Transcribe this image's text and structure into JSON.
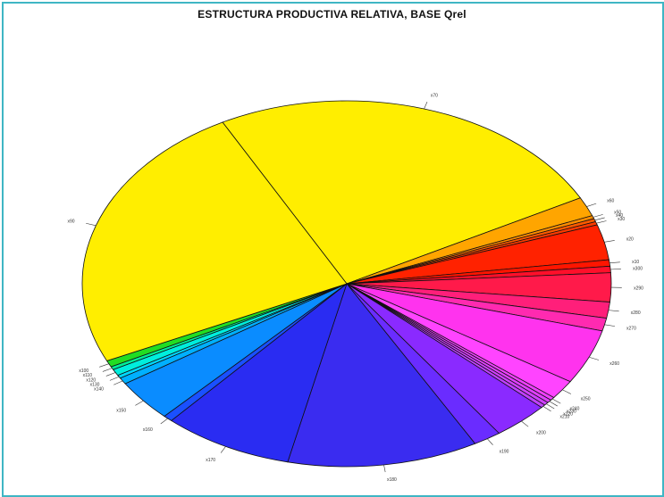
{
  "chart_data": {
    "type": "pie",
    "title": "ESTRUCTURA PRODUCTIVA RELATIVA, BASE Qrel",
    "unit": "degrees",
    "slices": [
      {
        "label": "x70",
        "value": 88,
        "color": "#ffee00"
      },
      {
        "label": "x60",
        "value": 6,
        "color": "#ffa500"
      },
      {
        "label": "x50",
        "value": 1,
        "color": "#ff8c00"
      },
      {
        "label": "x40",
        "value": 1,
        "color": "#ff5a00"
      },
      {
        "label": "x30",
        "value": 1,
        "color": "#ff3a00"
      },
      {
        "label": "x20",
        "value": 11,
        "color": "#ff2200"
      },
      {
        "label": "x10",
        "value": 2,
        "color": "#ff1500"
      },
      {
        "label": "x300",
        "value": 2,
        "color": "#ff0f2a"
      },
      {
        "label": "x290",
        "value": 9,
        "color": "#ff1a4a"
      },
      {
        "label": "x280",
        "value": 5,
        "color": "#ff1f7a"
      },
      {
        "label": "x270",
        "value": 4,
        "color": "#ff2ab0"
      },
      {
        "label": "x260",
        "value": 17,
        "color": "#ff33ee"
      },
      {
        "label": "x250",
        "value": 6,
        "color": "#ff44ff"
      },
      {
        "label": "x240",
        "value": 1,
        "color": "#f040ff"
      },
      {
        "label": "x230",
        "value": 1,
        "color": "#e040ff"
      },
      {
        "label": "x220",
        "value": 1,
        "color": "#d040ff"
      },
      {
        "label": "x210",
        "value": 1,
        "color": "#c040ff"
      },
      {
        "label": "x200",
        "value": 12,
        "color": "#8a2aff"
      },
      {
        "label": "x190",
        "value": 6,
        "color": "#6a2cff"
      },
      {
        "label": "x180",
        "value": 41,
        "color": "#3a2cf0"
      },
      {
        "label": "x170",
        "value": 28,
        "color": "#2a2cf2"
      },
      {
        "label": "x160",
        "value": 2,
        "color": "#1a50ff"
      },
      {
        "label": "x150",
        "value": 13,
        "color": "#0a8cff"
      },
      {
        "label": "x140",
        "value": 2,
        "color": "#00b0ff"
      },
      {
        "label": "x130",
        "value": 1,
        "color": "#00d8ff"
      },
      {
        "label": "x120",
        "value": 2,
        "color": "#00eedd"
      },
      {
        "label": "x110",
        "value": 1,
        "color": "#00ee99"
      },
      {
        "label": "x100",
        "value": 2,
        "color": "#22dd22"
      },
      {
        "label": "x90",
        "value": 85,
        "color": "#ffee00"
      }
    ]
  }
}
